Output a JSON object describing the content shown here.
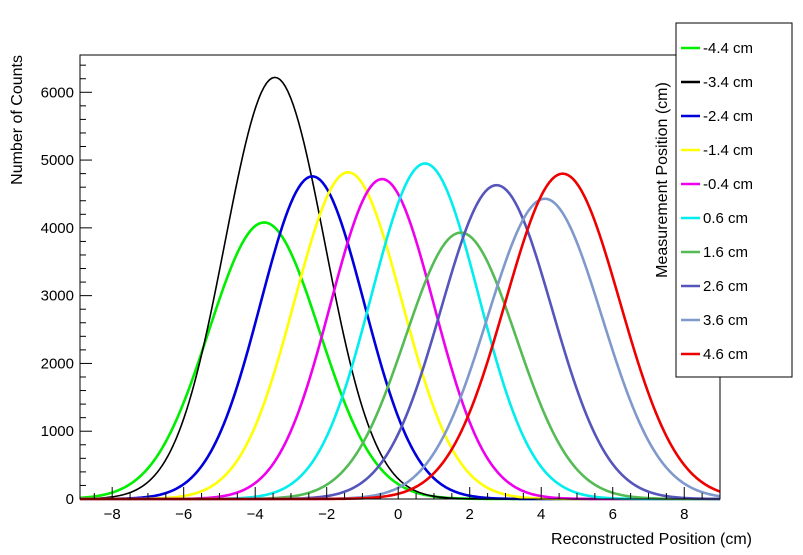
{
  "chart_data": {
    "type": "line",
    "xlabel": "Reconstructed Position (cm)",
    "ylabel": "Number of Counts",
    "legend_title": "Measurement Position (cm)",
    "legend_position": "right",
    "xlim": [
      -8.9,
      9.0
    ],
    "ylim": [
      0,
      6550
    ],
    "x_ticks": [
      -8,
      -6,
      -4,
      -2,
      0,
      2,
      4,
      6,
      8
    ],
    "y_ticks": [
      0,
      1000,
      2000,
      3000,
      4000,
      5000,
      6000
    ],
    "x_tick_labels": [
      "−8",
      "−6",
      "−4",
      "−2",
      "0",
      "2",
      "4",
      "6",
      "8"
    ],
    "y_tick_labels": [
      "0",
      "1000",
      "2000",
      "3000",
      "4000",
      "5000",
      "6000"
    ],
    "grid": false,
    "series": [
      {
        "name": "-4.4 cm",
        "color": "#00ee00",
        "peak_x": -3.75,
        "peak_y": 4080,
        "sigma": 1.55
      },
      {
        "name": "-3.4 cm",
        "color": "#000000",
        "peak_x": -3.45,
        "peak_y": 6220,
        "sigma": 1.4
      },
      {
        "name": "-2.4 cm",
        "color": "#0000dd",
        "peak_x": -2.4,
        "peak_y": 4760,
        "sigma": 1.45
      },
      {
        "name": "-1.4 cm",
        "color": "#ffff00",
        "peak_x": -1.4,
        "peak_y": 4820,
        "sigma": 1.5
      },
      {
        "name": "-0.4 cm",
        "color": "#ee00ee",
        "peak_x": -0.45,
        "peak_y": 4720,
        "sigma": 1.45
      },
      {
        "name": "0.6 cm",
        "color": "#00eeee",
        "peak_x": 0.75,
        "peak_y": 4950,
        "sigma": 1.5
      },
      {
        "name": "1.6 cm",
        "color": "#55bb55",
        "peak_x": 1.75,
        "peak_y": 3930,
        "sigma": 1.55
      },
      {
        "name": "2.6 cm",
        "color": "#5555bb",
        "peak_x": 2.75,
        "peak_y": 4630,
        "sigma": 1.55
      },
      {
        "name": "3.6 cm",
        "color": "#7f99cc",
        "peak_x": 4.1,
        "peak_y": 4430,
        "sigma": 1.6
      },
      {
        "name": "4.6 cm",
        "color": "#ee0000",
        "peak_x": 4.6,
        "peak_y": 4800,
        "sigma": 1.6
      }
    ]
  }
}
